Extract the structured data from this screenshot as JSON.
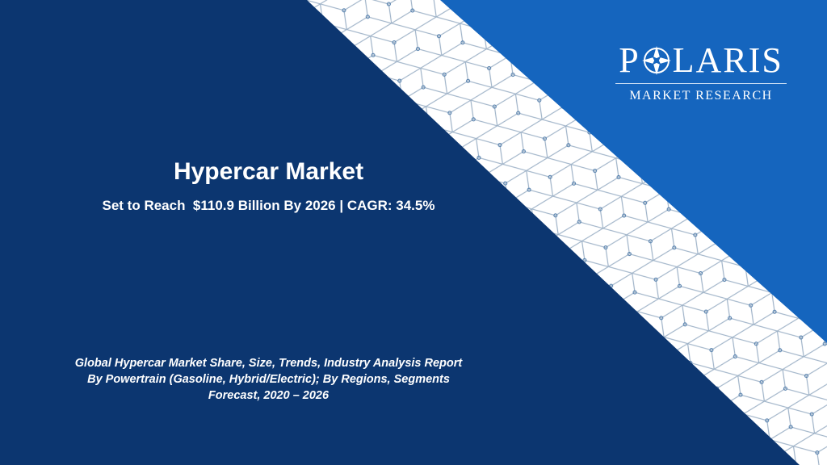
{
  "logo": {
    "name_start": "P",
    "name_end": "LARIS",
    "tagline": "MARKET RESEARCH"
  },
  "title": "Hypercar Market",
  "subtitle": "Set to Reach  $110.9 Billion By 2026 | CAGR: 34.5%",
  "description": [
    "Global Hypercar Market Share, Size, Trends, Industry Analysis Report",
    "By Powertrain (Gasoline, Hybrid/Electric); By Regions, Segments",
    "Forecast, 2020 – 2026"
  ]
}
